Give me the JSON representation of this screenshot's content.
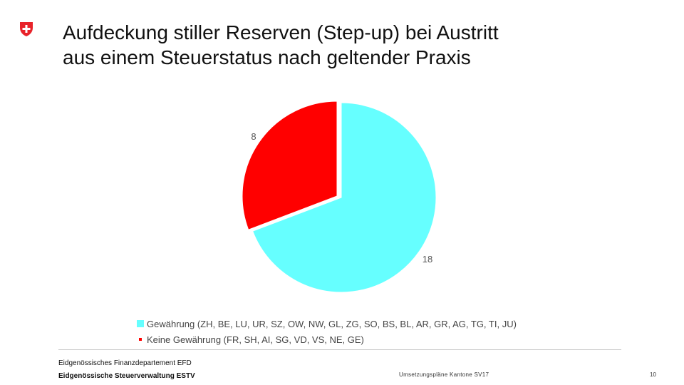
{
  "header": {
    "title_line1": "Aufdeckung stiller Reserven (Step-up) bei Austritt",
    "title_line2": "aus einem Steuerstatus nach geltender Praxis"
  },
  "logo": {
    "icon": "swiss-cross-icon",
    "color": "#e8232a"
  },
  "chart_data": {
    "type": "pie",
    "categories": [
      "Gewährung (ZH, BE, LU, UR, SZ, OW, NW, GL, ZG, SO, BS, BL, AR, GR, AG, TG, TI, JU)",
      "Keine Gewährung (FR, SH, AI, SG, VD, VS, NE, GE)"
    ],
    "values": [
      18,
      8
    ],
    "data_labels": [
      "18",
      "8"
    ],
    "colors": [
      "#66ffff",
      "#ff0000"
    ],
    "legend_position": "bottom"
  },
  "footer": {
    "department": "Eidgenössisches Finanzdepartement EFD",
    "office": "Eidgenössische Steuerverwaltung ESTV",
    "center_text": "Umsetzungspläne Kantone SV17",
    "page_number": "10"
  }
}
